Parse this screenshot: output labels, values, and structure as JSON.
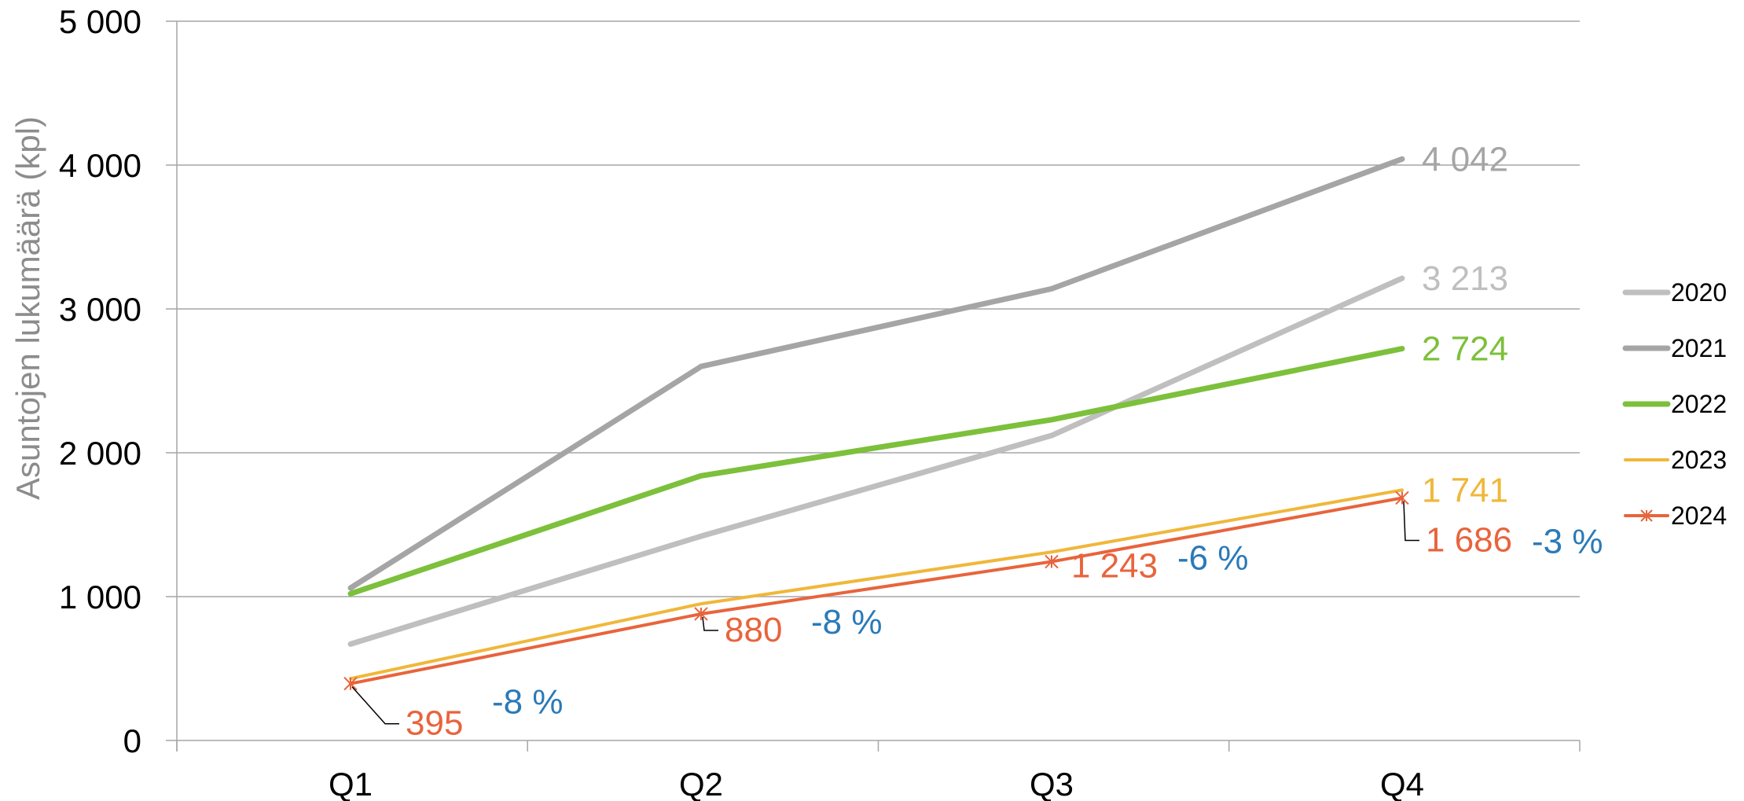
{
  "chart_data": {
    "type": "line",
    "categories": [
      "Q1",
      "Q2",
      "Q3",
      "Q4"
    ],
    "ylabel": "Asuntojen lukumäärä (kpl)",
    "ylim": [
      0,
      5000
    ],
    "yticks": [
      "0",
      "1 000",
      "2 000",
      "3 000",
      "4 000",
      "5 000"
    ],
    "grid": true,
    "legend_position": "right",
    "series": [
      {
        "name": "2020",
        "color": "#bfbfbf",
        "values": [
          670,
          1420,
          2120,
          3213
        ],
        "end_label": "3 213"
      },
      {
        "name": "2021",
        "color": "#a5a5a5",
        "values": [
          1060,
          2600,
          3140,
          4042
        ],
        "end_label": "4 042"
      },
      {
        "name": "2022",
        "color": "#7cc03b",
        "values": [
          1020,
          1840,
          2230,
          2724
        ],
        "end_label": "2 724"
      },
      {
        "name": "2023",
        "color": "#f0b73a",
        "values": [
          430,
          950,
          1310,
          1741
        ],
        "end_label": "1 741"
      },
      {
        "name": "2024",
        "color": "#e8643c",
        "values": [
          395,
          880,
          1243,
          1686
        ],
        "point_labels": [
          "395",
          "880",
          "1 243",
          "1 686"
        ]
      }
    ],
    "change_annotations": [
      "-8 %",
      "-8 %",
      "-6 %",
      "-3 %"
    ],
    "annotation_color": "#2a7ab8"
  }
}
